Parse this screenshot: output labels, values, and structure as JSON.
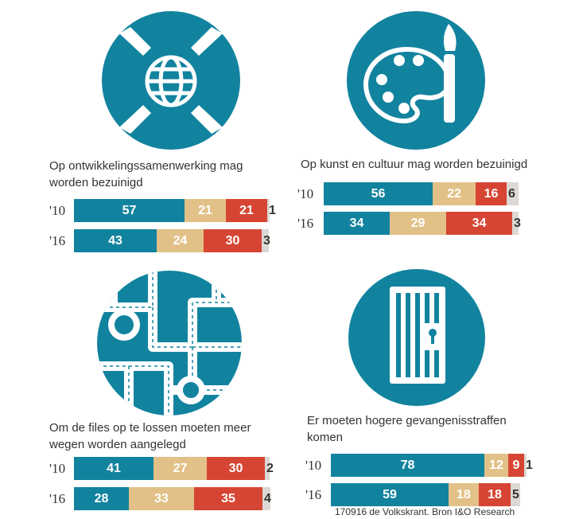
{
  "colors": {
    "teal": "#12839f",
    "sand": "#e2c188",
    "red": "#d64533",
    "grey": "#dcd9d4",
    "icon_bg": "#12839f"
  },
  "chart_data": [
    {
      "type": "bar",
      "stacked": true,
      "orientation": "horizontal",
      "title": "Op ontwikkelingssamenwerking mag worden bezuinigd",
      "categories": [
        "'10",
        "'16"
      ],
      "values": [
        [
          57,
          21,
          21,
          1
        ],
        [
          43,
          24,
          30,
          3
        ]
      ],
      "labels": [
        [
          "57",
          "21",
          "21",
          "1"
        ],
        [
          "43",
          "24",
          "30",
          "3"
        ]
      ]
    },
    {
      "type": "bar",
      "stacked": true,
      "orientation": "horizontal",
      "title": "Op kunst en cultuur mag worden bezuinigd",
      "categories": [
        "'10",
        "'16"
      ],
      "values": [
        [
          56,
          22,
          16,
          6
        ],
        [
          34,
          29,
          34,
          3
        ]
      ],
      "labels": [
        [
          "56",
          "22",
          "16",
          "6"
        ],
        [
          "34",
          "29",
          "34",
          "3"
        ]
      ]
    },
    {
      "type": "bar",
      "stacked": true,
      "orientation": "horizontal",
      "title": "Om de files op te lossen moeten meer wegen worden aangelegd",
      "categories": [
        "'10",
        "'16"
      ],
      "values": [
        [
          41,
          27,
          30,
          2
        ],
        [
          28,
          33,
          35,
          4
        ]
      ],
      "labels": [
        [
          "41",
          "27",
          "30",
          "2"
        ],
        [
          "28",
          "33",
          "35",
          "4"
        ]
      ]
    },
    {
      "type": "bar",
      "stacked": true,
      "orientation": "horizontal",
      "title": "Er moeten hogere gevangenisstraffen komen",
      "categories": [
        "'10",
        "'16"
      ],
      "values": [
        [
          78,
          12,
          9,
          1
        ],
        [
          59,
          18,
          18,
          5
        ]
      ],
      "labels": [
        [
          "78",
          "12",
          "9",
          "1"
        ],
        [
          "59",
          "18",
          "18",
          "5"
        ]
      ]
    }
  ],
  "source": "170916 de Volkskrant. Bron I&O Research"
}
